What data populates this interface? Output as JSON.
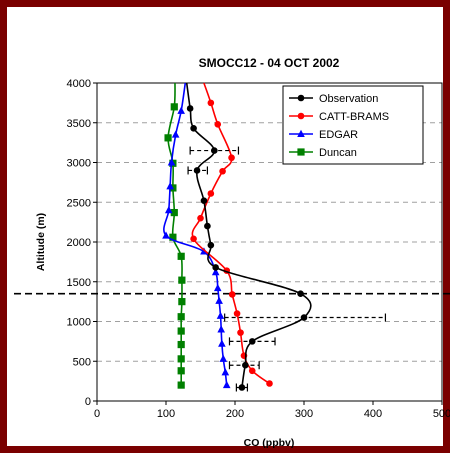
{
  "chart_data": {
    "type": "line",
    "title": "SMOCC12 - 04 OCT 2002",
    "xlabel": "CO (ppbv)",
    "ylabel": "Altitude (m)",
    "xlim": [
      0,
      500
    ],
    "ylim": [
      0,
      4000
    ],
    "xticks": [
      "0",
      "100",
      "200",
      "300",
      "400",
      "500"
    ],
    "yticks": [
      "0",
      "500",
      "1000",
      "1500",
      "2000",
      "2500",
      "3000",
      "3500",
      "4000"
    ],
    "grid": "horizontal dashed",
    "legend_position": "top-right",
    "reference_line": {
      "y": 1350,
      "style": "dashed"
    },
    "series": [
      {
        "name": "Observation",
        "color": "#000000",
        "marker": "circle",
        "points": [
          [
            210,
            170
          ],
          [
            215,
            450
          ],
          [
            225,
            750
          ],
          [
            300,
            1050
          ],
          [
            295,
            1350
          ],
          [
            172,
            1680
          ],
          [
            165,
            1960
          ],
          [
            160,
            2200
          ],
          [
            155,
            2520
          ],
          [
            145,
            2900
          ],
          [
            170,
            3150
          ],
          [
            140,
            3430
          ],
          [
            135,
            3680
          ],
          [
            130,
            4000
          ]
        ],
        "error_bars": [
          {
            "y": 170,
            "xmin": 202,
            "xmax": 218
          },
          {
            "y": 450,
            "xmin": 192,
            "xmax": 235
          },
          {
            "y": 750,
            "xmin": 192,
            "xmax": 258
          },
          {
            "y": 1050,
            "xmin": 185,
            "xmax": 418
          },
          {
            "y": 2900,
            "xmin": 132,
            "xmax": 160
          },
          {
            "y": 3150,
            "xmin": 135,
            "xmax": 205
          }
        ]
      },
      {
        "name": "CATT-BRAMS",
        "color": "#ff0000",
        "marker": "circle",
        "points": [
          [
            250,
            220
          ],
          [
            225,
            380
          ],
          [
            213,
            570
          ],
          [
            208,
            860
          ],
          [
            203,
            1100
          ],
          [
            196,
            1340
          ],
          [
            188,
            1640
          ],
          [
            140,
            2040
          ],
          [
            150,
            2300
          ],
          [
            165,
            2610
          ],
          [
            182,
            2890
          ],
          [
            195,
            3060
          ],
          [
            175,
            3480
          ],
          [
            165,
            3750
          ],
          [
            155,
            4000
          ]
        ]
      },
      {
        "name": "EDGAR",
        "color": "#0000ff",
        "marker": "triangle",
        "points": [
          [
            188,
            200
          ],
          [
            186,
            360
          ],
          [
            183,
            530
          ],
          [
            181,
            720
          ],
          [
            180,
            900
          ],
          [
            179,
            1070
          ],
          [
            177,
            1260
          ],
          [
            175,
            1420
          ],
          [
            172,
            1620
          ],
          [
            155,
            1880
          ],
          [
            100,
            2080
          ],
          [
            104,
            2400
          ],
          [
            106,
            2700
          ],
          [
            108,
            3000
          ],
          [
            114,
            3350
          ],
          [
            122,
            3650
          ],
          [
            128,
            4000
          ]
        ]
      },
      {
        "name": "Duncan",
        "color": "#008000",
        "marker": "square",
        "points": [
          [
            122,
            200
          ],
          [
            122,
            380
          ],
          [
            122,
            530
          ],
          [
            122,
            710
          ],
          [
            122,
            880
          ],
          [
            122,
            1060
          ],
          [
            123,
            1250
          ],
          [
            123,
            1520
          ],
          [
            122,
            1820
          ],
          [
            110,
            2060
          ],
          [
            112,
            2370
          ],
          [
            110,
            2680
          ],
          [
            110,
            2990
          ],
          [
            103,
            3310
          ],
          [
            112,
            3700
          ],
          [
            113,
            4000
          ]
        ]
      }
    ]
  }
}
